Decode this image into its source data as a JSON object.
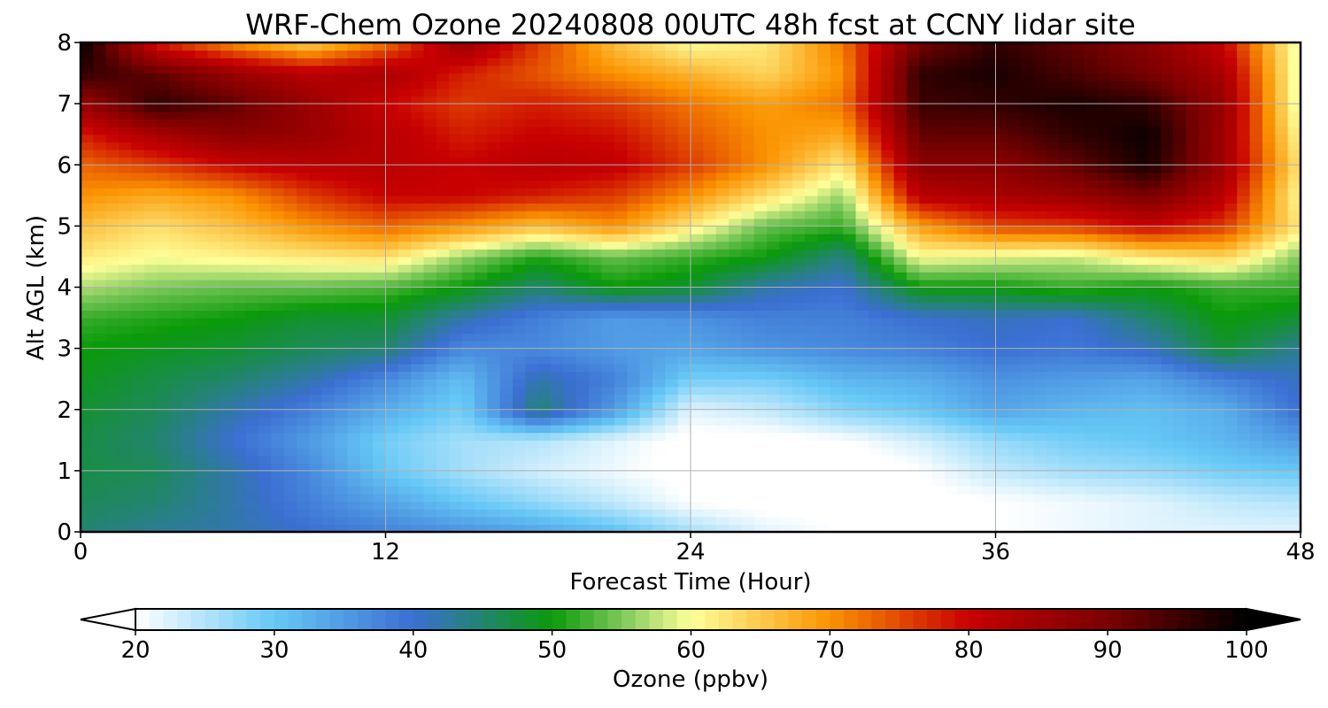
{
  "chart_data": {
    "type": "heatmap",
    "title": "WRF-Chem Ozone  20240808 00UTC 48h fcst at CCNY lidar site",
    "xlabel": "Forecast Time (Hour)",
    "ylabel": "Alt AGL (km)",
    "xlim": [
      0,
      48
    ],
    "ylim": [
      0,
      8
    ],
    "x_ticks": [
      0,
      12,
      24,
      36,
      48
    ],
    "y_ticks": [
      0,
      1,
      2,
      3,
      4,
      5,
      6,
      7,
      8
    ],
    "grid": true,
    "x": [
      0,
      3,
      6,
      9,
      12,
      15,
      18,
      21,
      24,
      27,
      30,
      33,
      36,
      39,
      42,
      45,
      48
    ],
    "y": [
      0,
      0.5,
      1,
      1.5,
      2,
      2.5,
      3,
      3.5,
      4,
      4.5,
      5,
      5.5,
      6,
      6.5,
      7,
      7.5,
      8
    ],
    "z": [
      [
        45,
        43,
        42,
        40,
        38,
        36,
        34,
        31,
        26,
        22,
        20,
        20,
        20,
        21,
        22,
        22,
        22
      ],
      [
        46,
        45,
        42,
        38,
        34,
        30,
        27,
        24,
        20,
        19,
        19,
        19,
        20,
        21,
        22,
        24,
        25
      ],
      [
        47,
        46,
        42,
        37,
        30,
        26,
        23,
        21,
        19,
        18,
        18,
        20,
        24,
        26,
        27,
        29,
        30
      ],
      [
        47,
        45,
        40,
        35,
        29,
        26,
        25,
        22,
        19,
        19,
        20,
        23,
        27,
        29,
        30,
        32,
        35
      ],
      [
        48,
        46,
        42,
        38,
        33,
        29,
        45,
        35,
        22,
        24,
        28,
        30,
        34,
        32,
        31,
        33,
        40
      ],
      [
        49,
        47,
        45,
        42,
        37,
        31,
        42,
        38,
        29,
        29,
        32,
        33,
        36,
        35,
        34,
        38,
        41
      ],
      [
        50,
        49,
        48,
        46,
        45,
        37,
        37,
        35,
        34,
        36,
        37,
        38,
        40,
        39,
        41,
        48,
        43
      ],
      [
        52,
        51,
        50,
        48,
        48,
        42,
        38,
        35,
        36,
        38,
        38,
        40,
        41,
        40,
        45,
        50,
        48
      ],
      [
        57,
        55,
        54,
        54,
        53,
        50,
        45,
        50,
        48,
        42,
        40,
        50,
        50,
        52,
        50,
        52,
        52
      ],
      [
        62,
        60,
        61,
        62,
        63,
        56,
        51,
        54,
        52,
        50,
        44,
        60,
        59,
        58,
        62,
        64,
        55
      ],
      [
        66,
        63,
        66,
        70,
        73,
        70,
        66,
        70,
        62,
        54,
        52,
        69,
        75,
        76,
        80,
        76,
        62
      ],
      [
        70,
        68,
        70,
        76,
        80,
        80,
        78,
        76,
        70,
        63,
        56,
        82,
        84,
        86,
        90,
        82,
        60
      ],
      [
        73,
        76,
        80,
        82,
        82,
        80,
        82,
        81,
        76,
        70,
        62,
        88,
        88,
        92,
        98,
        85,
        62
      ],
      [
        78,
        84,
        88,
        86,
        82,
        78,
        80,
        79,
        74,
        70,
        68,
        92,
        92,
        96,
        99,
        85,
        60
      ],
      [
        86,
        96,
        92,
        86,
        80,
        76,
        78,
        76,
        72,
        69,
        72,
        95,
        96,
        98,
        96,
        86,
        58
      ],
      [
        96,
        92,
        86,
        82,
        84,
        78,
        74,
        70,
        67,
        64,
        70,
        96,
        98,
        94,
        90,
        84,
        58
      ],
      [
        100,
        78,
        70,
        64,
        72,
        86,
        76,
        66,
        60,
        62,
        72,
        90,
        96,
        92,
        88,
        80,
        58
      ]
    ],
    "colorbar": {
      "label": "Ozone  (ppbv)",
      "min": 20,
      "max": 100,
      "ticks": [
        20,
        30,
        40,
        50,
        60,
        70,
        80,
        90,
        100
      ],
      "extend": "both",
      "placement": "bottom",
      "colors": [
        {
          "v": 20,
          "c": "#ffffff"
        },
        {
          "v": 30,
          "c": "#66c8f6"
        },
        {
          "v": 40,
          "c": "#3b6fd2"
        },
        {
          "v": 50,
          "c": "#0a9a0a"
        },
        {
          "v": 55,
          "c": "#7cc85a"
        },
        {
          "v": 60,
          "c": "#ffff99"
        },
        {
          "v": 70,
          "c": "#fb9300"
        },
        {
          "v": 80,
          "c": "#c80000"
        },
        {
          "v": 90,
          "c": "#7a0000"
        },
        {
          "v": 100,
          "c": "#000000"
        }
      ]
    }
  }
}
